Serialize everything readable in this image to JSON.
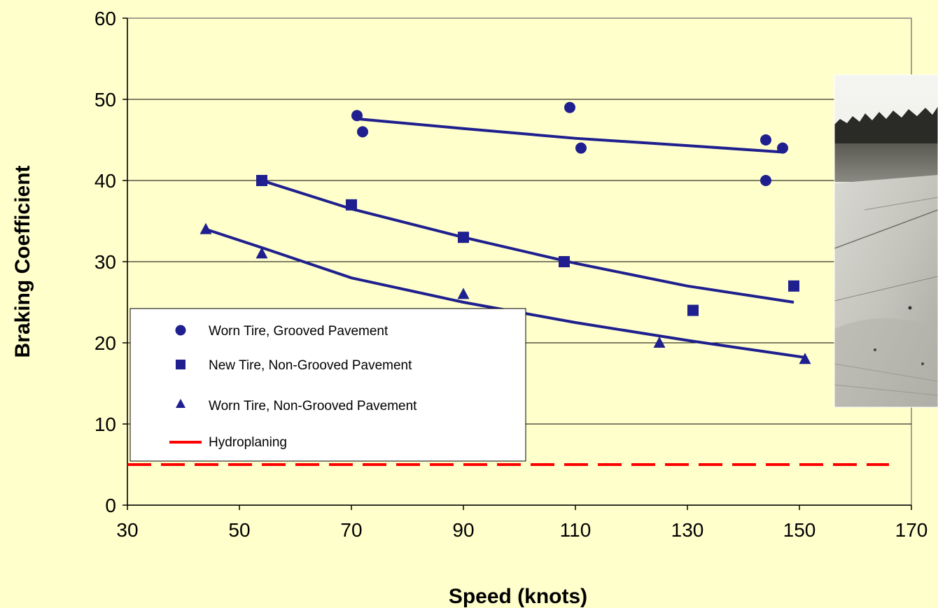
{
  "chart_data": {
    "type": "scatter",
    "title": "",
    "xlabel": "Speed (knots)",
    "ylabel": "Braking Coefficient",
    "xlim": [
      30,
      170
    ],
    "ylim": [
      0,
      60
    ],
    "x_ticks": [
      30,
      50,
      70,
      90,
      110,
      130,
      150,
      170
    ],
    "y_ticks": [
      0,
      10,
      20,
      30,
      40,
      50,
      60
    ],
    "grid": "horizontal",
    "legend_position": "bottom-left",
    "series": [
      {
        "name": "Worn Tire, Grooved Pavement",
        "marker": "circle",
        "color": "#1f1f8f",
        "points": [
          [
            71,
            48
          ],
          [
            72,
            46
          ],
          [
            109,
            49
          ],
          [
            111,
            44
          ],
          [
            144,
            45
          ],
          [
            144,
            40
          ],
          [
            147,
            44
          ]
        ],
        "trend": [
          [
            71,
            47.6
          ],
          [
            90,
            46.4
          ],
          [
            110,
            45.2
          ],
          [
            130,
            44.3
          ],
          [
            147,
            43.5
          ]
        ]
      },
      {
        "name": "New Tire, Non-Grooved Pavement",
        "marker": "square",
        "color": "#1f1f8f",
        "points": [
          [
            54,
            40
          ],
          [
            70,
            37
          ],
          [
            90,
            33
          ],
          [
            108,
            30
          ],
          [
            131,
            24
          ],
          [
            149,
            27
          ]
        ],
        "trend": [
          [
            54,
            40
          ],
          [
            70,
            36.5
          ],
          [
            90,
            33
          ],
          [
            110,
            29.8
          ],
          [
            130,
            27
          ],
          [
            149,
            25
          ]
        ]
      },
      {
        "name": "Worn Tire, Non-Grooved Pavement",
        "marker": "triangle",
        "color": "#1f1f8f",
        "points": [
          [
            44,
            34
          ],
          [
            54,
            31
          ],
          [
            90,
            26
          ],
          [
            125,
            20
          ],
          [
            151,
            18
          ]
        ],
        "trend": [
          [
            44,
            34
          ],
          [
            55,
            31.5
          ],
          [
            70,
            28
          ],
          [
            90,
            25
          ],
          [
            110,
            22.5
          ],
          [
            130,
            20.3
          ],
          [
            151,
            18.2
          ]
        ]
      },
      {
        "name": "Hydroplaning",
        "style": "dashed-line",
        "color": "#ff0000",
        "y": 5,
        "x_range": [
          30,
          166
        ]
      }
    ]
  },
  "photo": {
    "name": "runway-photo",
    "description_icon": "photo-icon"
  }
}
